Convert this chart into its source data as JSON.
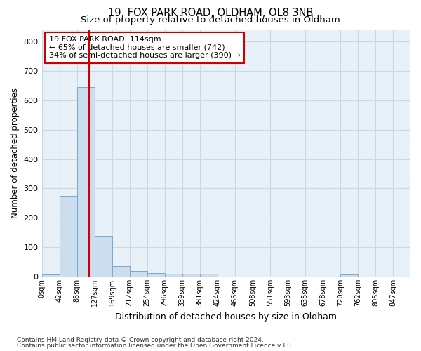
{
  "title1": "19, FOX PARK ROAD, OLDHAM, OL8 3NB",
  "title2": "Size of property relative to detached houses in Oldham",
  "xlabel": "Distribution of detached houses by size in Oldham",
  "ylabel": "Number of detached properties",
  "footer1": "Contains HM Land Registry data © Crown copyright and database right 2024.",
  "footer2": "Contains public sector information licensed under the Open Government Licence v3.0.",
  "annotation_line1": "19 FOX PARK ROAD: 114sqm",
  "annotation_line2": "← 65% of detached houses are smaller (742)",
  "annotation_line3": "34% of semi-detached houses are larger (390) →",
  "bar_color": "#ccdded",
  "bar_edge_color": "#7aaac8",
  "red_line_x": 114,
  "red_line_color": "#cc0000",
  "grid_color": "#c8d8e8",
  "bg_color": "#e8f0f8",
  "bin_width": 42.5,
  "bin_starts": [
    0,
    42.5,
    85,
    127.5,
    170,
    212.5,
    255,
    297.5,
    340,
    382.5,
    425,
    467.5,
    510,
    552.5,
    595,
    637.5,
    680,
    722.5,
    765,
    807.5
  ],
  "bin_labels": [
    "0sqm",
    "42sqm",
    "85sqm",
    "127sqm",
    "169sqm",
    "212sqm",
    "254sqm",
    "296sqm",
    "339sqm",
    "381sqm",
    "424sqm",
    "466sqm",
    "508sqm",
    "551sqm",
    "593sqm",
    "635sqm",
    "678sqm",
    "720sqm",
    "762sqm",
    "805sqm",
    "847sqm"
  ],
  "bar_heights": [
    8,
    275,
    645,
    138,
    37,
    20,
    12,
    10,
    10,
    10,
    0,
    0,
    0,
    0,
    0,
    0,
    0,
    7,
    0,
    0
  ],
  "ylim": [
    0,
    840
  ],
  "xlim_max": 892.5,
  "yticks": [
    0,
    100,
    200,
    300,
    400,
    500,
    600,
    700,
    800
  ]
}
